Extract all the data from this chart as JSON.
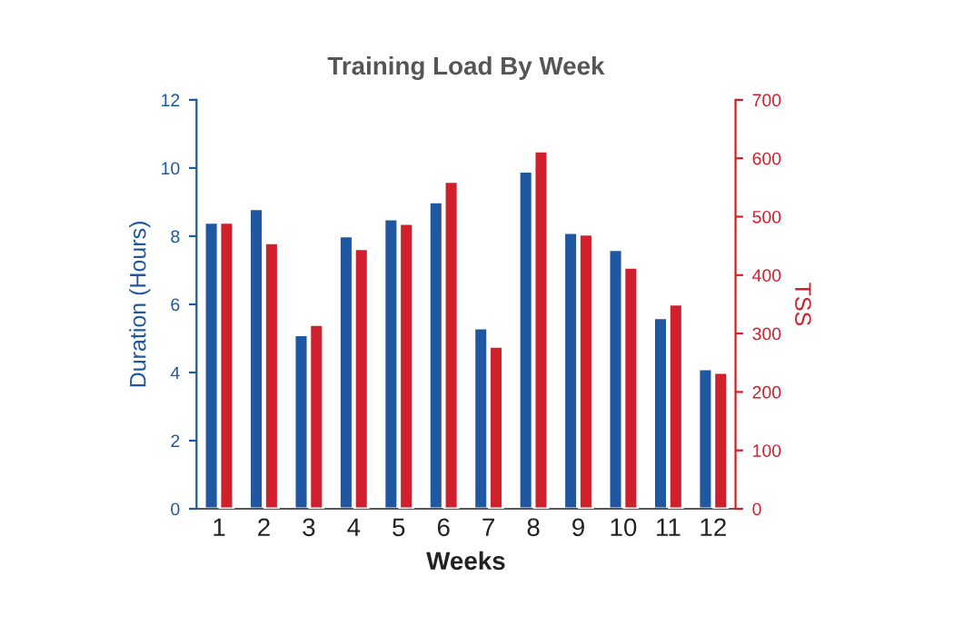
{
  "chart_data": {
    "type": "bar",
    "title": "Training Load By Week",
    "xlabel": "Weeks",
    "ylabel": "Duration (Hours)",
    "y2label": "TSS",
    "categories": [
      "1",
      "2",
      "3",
      "4",
      "5",
      "6",
      "7",
      "8",
      "9",
      "10",
      "11",
      "12"
    ],
    "series": [
      {
        "color": "#1f57a0",
        "values": [
          8.4,
          8.8,
          5.1,
          8.0,
          8.5,
          9.0,
          5.3,
          9.9,
          8.1,
          7.6,
          5.6,
          4.1
        ]
      },
      {
        "color": "#d0202e",
        "axis": "y2",
        "values": [
          490,
          455,
          315,
          445,
          488,
          560,
          278,
          612,
          470,
          413,
          350,
          233
        ]
      }
    ],
    "ylim": [
      0,
      12
    ],
    "yticks": [
      0,
      2,
      4,
      6,
      8,
      10,
      12
    ],
    "y2lim": [
      0,
      700
    ],
    "y2ticks": [
      0,
      100,
      200,
      300,
      400,
      500,
      600,
      700
    ],
    "grid": false,
    "legend": false
  }
}
